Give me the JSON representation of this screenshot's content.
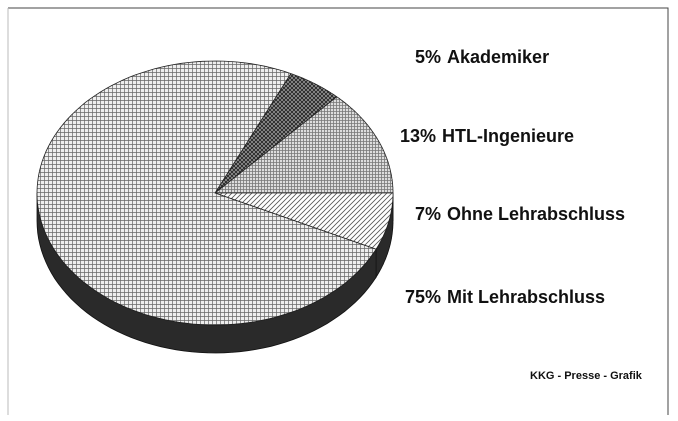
{
  "chart_data": {
    "type": "pie",
    "categories": [
      "Akademiker",
      "HTL-Ingenieure",
      "Ohne Lehrabschluss",
      "Mit Lehrabschluss"
    ],
    "values": [
      5,
      13,
      7,
      75
    ],
    "value_labels": [
      "5%",
      "13%",
      "7%",
      "75%"
    ],
    "source": "KKG - Presse - Grafik"
  }
}
